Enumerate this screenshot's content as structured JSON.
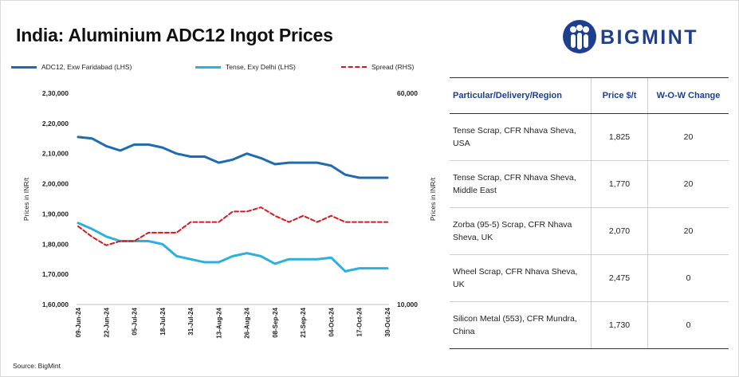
{
  "header": {
    "title": "India: Aluminium ADC12 Ingot Prices"
  },
  "logo": {
    "text": "BIGMINT",
    "mark": "bigmint-people-mark-icon"
  },
  "legend": [
    {
      "label": "ADC12, Exw Faridabad (LHS)"
    },
    {
      "label": "Tense, Exy Delhi (LHS)"
    },
    {
      "label": "Spread (RHS)"
    }
  ],
  "source": "Source: BigMint",
  "colors": {
    "adc12": "#1f6bb0",
    "tense": "#2cb0e0",
    "spread": "#d7191c",
    "brand": "#1d3f8f"
  },
  "chart_data": {
    "type": "line",
    "title": "India: Aluminium ADC12 Ingot Prices",
    "ylabel": "Prices in INR/t",
    "y2label": "Prices in INR/t",
    "ylim": [
      160000,
      230000
    ],
    "y2lim": [
      10000,
      60000
    ],
    "yticks": [
      "1,60,000",
      "1,70,000",
      "1,80,000",
      "1,90,000",
      "2,00,000",
      "2,10,000",
      "2,20,000",
      "2,30,000"
    ],
    "y2ticks": [
      "10,000",
      "60,000"
    ],
    "x": [
      "09-Jun-24",
      "16-Jun-24",
      "22-Jun-24",
      "29-Jun-24",
      "05-Jul-24",
      "12-Jul-24",
      "18-Jul-24",
      "25-Jul-24",
      "31-Jul-24",
      "07-Aug-24",
      "13-Aug-24",
      "20-Aug-24",
      "26-Aug-24",
      "02-Sep-24",
      "08-Sep-24",
      "15-Sep-24",
      "21-Sep-24",
      "28-Sep-24",
      "04-Oct-24",
      "11-Oct-24",
      "17-Oct-24",
      "24-Oct-24",
      "30-Oct-24"
    ],
    "xtick_labels": [
      "09-Jun-24",
      "22-Jun-24",
      "05-Jul-24",
      "18-Jul-24",
      "31-Jul-24",
      "13-Aug-24",
      "26-Aug-24",
      "08-Sep-24",
      "21-Sep-24",
      "04-Oct-24",
      "17-Oct-24",
      "30-Oct-24"
    ],
    "series": [
      {
        "name": "ADC12, Exw Faridabad (LHS)",
        "axis": "left",
        "style": "solid",
        "values": [
          215500,
          215000,
          212500,
          211000,
          213000,
          213000,
          212000,
          210000,
          209000,
          209000,
          207000,
          208000,
          210000,
          208500,
          206500,
          207000,
          207000,
          207000,
          206000,
          203000,
          202000,
          202000,
          202000
        ]
      },
      {
        "name": "Tense, Exy Delhi (LHS)",
        "axis": "left",
        "style": "solid",
        "values": [
          187000,
          185000,
          182500,
          181000,
          181000,
          181000,
          180000,
          176000,
          175000,
          174000,
          174000,
          176000,
          177000,
          176000,
          173500,
          175000,
          175000,
          175000,
          175500,
          171000,
          172000,
          172000,
          172000
        ]
      },
      {
        "name": "Spread (RHS)",
        "axis": "right",
        "style": "dashed",
        "values": [
          28500,
          26000,
          24000,
          25000,
          25000,
          27000,
          27000,
          27000,
          29500,
          29500,
          29500,
          32000,
          32000,
          33000,
          31000,
          29500,
          31000,
          29500,
          31000,
          29500,
          29500,
          29500,
          29500
        ]
      }
    ]
  },
  "table": {
    "headers": [
      "Particular/Delivery/Region",
      "Price $/t",
      "W-O-W Change"
    ],
    "rows": [
      {
        "particular": " Tense Scrap, CFR Nhava Sheva, USA",
        "price": "1,825",
        "change": "20",
        "positive": true
      },
      {
        "particular": "Tense Scrap, CFR Nhava Sheva, Middle East",
        "price": "1,770",
        "change": "20",
        "positive": true
      },
      {
        "particular": "Zorba (95-5) Scrap, CFR Nhava Sheva, UK",
        "price": "2,070",
        "change": "20",
        "positive": true
      },
      {
        "particular": "Wheel Scrap, CFR Nhava Sheva, UK",
        "price": "2,475",
        "change": "0",
        "positive": false
      },
      {
        "particular": "Silicon Metal (553), CFR Mundra, China",
        "price": "1,730",
        "change": "0",
        "positive": false
      }
    ]
  }
}
